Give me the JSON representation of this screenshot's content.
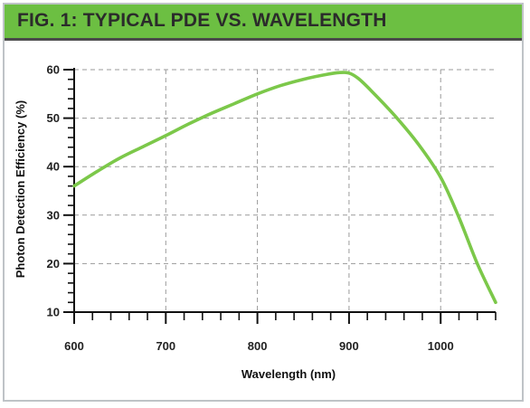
{
  "header": {
    "title": "FIG. 1: TYPICAL PDE VS. WAVELENGTH"
  },
  "colors": {
    "banner": "#6cbf42",
    "curve": "#7cc84a",
    "grid": "#9a9a9a",
    "axis": "#111111"
  },
  "chart_data": {
    "type": "line",
    "title": "FIG. 1: TYPICAL PDE VS. WAVELENGTH",
    "xlabel": "Wavelength (nm)",
    "ylabel": "Photon Detection Efficiency (%)",
    "xlim": [
      600,
      1060
    ],
    "ylim": [
      10,
      60
    ],
    "x_ticks": [
      600,
      700,
      800,
      900,
      1000
    ],
    "y_ticks": [
      10,
      20,
      30,
      40,
      50,
      60
    ],
    "x_minor_step": 20,
    "y_minor_step": 2,
    "grid": true,
    "series": [
      {
        "x": [
          600,
          625,
          650,
          675,
          700,
          725,
          750,
          775,
          800,
          825,
          850,
          875,
          890,
          900,
          910,
          925,
          950,
          975,
          1000,
          1020,
          1040,
          1060
        ],
        "values": [
          36,
          39,
          41.8,
          44.1,
          46.4,
          48.8,
          51,
          53,
          55,
          56.7,
          58,
          59,
          59.4,
          59.3,
          58.2,
          55.5,
          50.5,
          44.8,
          37.8,
          29.5,
          20,
          12
        ]
      }
    ]
  }
}
